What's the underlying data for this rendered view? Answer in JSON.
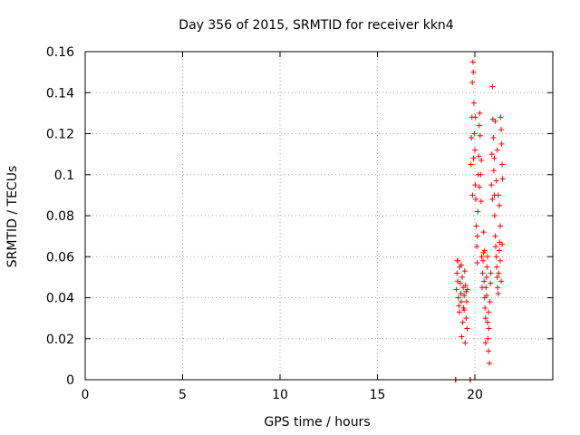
{
  "chart_data": {
    "type": "scatter",
    "title": "Day 356 of 2015, SRMTID for receiver kkn4",
    "xlabel": "GPS time / hours",
    "ylabel": "SRMTID / TECUs",
    "xlim": [
      0,
      24
    ],
    "ylim": [
      0,
      0.16
    ],
    "xticks": [
      "0",
      "5",
      "10",
      "15",
      "20"
    ],
    "yticks": [
      "0",
      "0.02",
      "0.04",
      "0.06",
      "0.08",
      "0.1",
      "0.12",
      "0.14",
      "0.16"
    ],
    "grid": true,
    "marker": "+",
    "color": "#ff0000",
    "series": [
      {
        "points": [
          [
            19.0,
            0.0
          ],
          [
            19.02,
            0.0
          ],
          [
            19.75,
            0.0
          ],
          [
            19.77,
            0.0
          ],
          [
            19.05,
            0.044
          ],
          [
            19.08,
            0.052
          ],
          [
            19.1,
            0.058
          ],
          [
            19.12,
            0.048
          ],
          [
            19.15,
            0.04
          ],
          [
            19.18,
            0.036
          ],
          [
            19.2,
            0.033
          ],
          [
            19.22,
            0.055
          ],
          [
            19.25,
            0.047
          ],
          [
            19.28,
            0.042
          ],
          [
            19.3,
            0.038
          ],
          [
            19.32,
            0.021
          ],
          [
            19.35,
            0.05
          ],
          [
            19.38,
            0.028
          ],
          [
            19.4,
            0.045
          ],
          [
            19.42,
            0.035
          ],
          [
            19.45,
            0.041
          ],
          [
            19.48,
            0.053
          ],
          [
            19.5,
            0.018
          ],
          [
            19.52,
            0.046
          ],
          [
            19.55,
            0.03
          ],
          [
            19.58,
            0.038
          ],
          [
            19.6,
            0.025
          ],
          [
            19.62,
            0.044
          ],
          [
            19.12,
            0.058
          ],
          [
            19.3,
            0.056
          ],
          [
            19.45,
            0.034
          ],
          [
            19.55,
            0.043
          ],
          [
            19.8,
            0.105
          ],
          [
            19.82,
            0.118
          ],
          [
            19.85,
            0.128
          ],
          [
            19.87,
            0.145
          ],
          [
            19.9,
            0.155
          ],
          [
            19.92,
            0.15
          ],
          [
            19.95,
            0.135
          ],
          [
            19.97,
            0.12
          ],
          [
            20.0,
            0.112
          ],
          [
            20.02,
            0.095
          ],
          [
            20.05,
            0.088
          ],
          [
            20.07,
            0.075
          ],
          [
            20.1,
            0.065
          ],
          [
            20.12,
            0.057
          ],
          [
            20.15,
            0.082
          ],
          [
            20.17,
            0.1
          ],
          [
            20.2,
            0.109
          ],
          [
            20.22,
            0.124
          ],
          [
            20.25,
            0.13
          ],
          [
            20.27,
            0.119
          ],
          [
            20.3,
            0.1
          ],
          [
            20.32,
            0.087
          ],
          [
            20.35,
            0.06
          ],
          [
            20.37,
            0.045
          ],
          [
            19.88,
            0.09
          ],
          [
            19.93,
            0.108
          ],
          [
            20.03,
            0.128
          ],
          [
            20.13,
            0.07
          ],
          [
            20.23,
            0.094
          ],
          [
            20.33,
            0.107
          ],
          [
            20.4,
            0.052
          ],
          [
            20.42,
            0.058
          ],
          [
            20.45,
            0.062
          ],
          [
            20.47,
            0.048
          ],
          [
            20.5,
            0.04
          ],
          [
            20.52,
            0.035
          ],
          [
            20.55,
            0.03
          ],
          [
            20.57,
            0.045
          ],
          [
            20.6,
            0.05
          ],
          [
            20.62,
            0.055
          ],
          [
            20.65,
            0.028
          ],
          [
            20.67,
            0.02
          ],
          [
            20.7,
            0.014
          ],
          [
            20.72,
            0.025
          ],
          [
            20.75,
            0.008
          ],
          [
            20.77,
            0.038
          ],
          [
            20.8,
            0.047
          ],
          [
            20.82,
            0.052
          ],
          [
            20.5,
            0.063
          ],
          [
            20.6,
            0.041
          ],
          [
            20.7,
            0.033
          ],
          [
            20.55,
            0.018
          ],
          [
            20.65,
            0.06
          ],
          [
            20.45,
            0.072
          ],
          [
            20.85,
            0.095
          ],
          [
            20.87,
            0.11
          ],
          [
            20.9,
            0.143
          ],
          [
            20.92,
            0.127
          ],
          [
            20.95,
            0.118
          ],
          [
            20.97,
            0.102
          ],
          [
            21.0,
            0.09
          ],
          [
            21.02,
            0.08
          ],
          [
            21.05,
            0.07
          ],
          [
            21.07,
            0.065
          ],
          [
            21.1,
            0.06
          ],
          [
            21.12,
            0.055
          ],
          [
            21.15,
            0.05
          ],
          [
            21.17,
            0.045
          ],
          [
            21.2,
            0.042
          ],
          [
            21.22,
            0.052
          ],
          [
            21.25,
            0.063
          ],
          [
            21.27,
            0.067
          ],
          [
            21.3,
            0.058
          ],
          [
            21.32,
            0.128
          ],
          [
            21.35,
            0.122
          ],
          [
            21.37,
            0.115
          ],
          [
            21.4,
            0.105
          ],
          [
            21.42,
            0.098
          ],
          [
            20.9,
            0.088
          ],
          [
            21.0,
            0.108
          ],
          [
            21.1,
            0.097
          ],
          [
            21.2,
            0.09
          ],
          [
            21.3,
            0.075
          ],
          [
            21.35,
            0.048
          ],
          [
            21.05,
            0.126
          ],
          [
            21.15,
            0.112
          ],
          [
            21.25,
            0.085
          ],
          [
            21.4,
            0.066
          ]
        ]
      }
    ]
  }
}
